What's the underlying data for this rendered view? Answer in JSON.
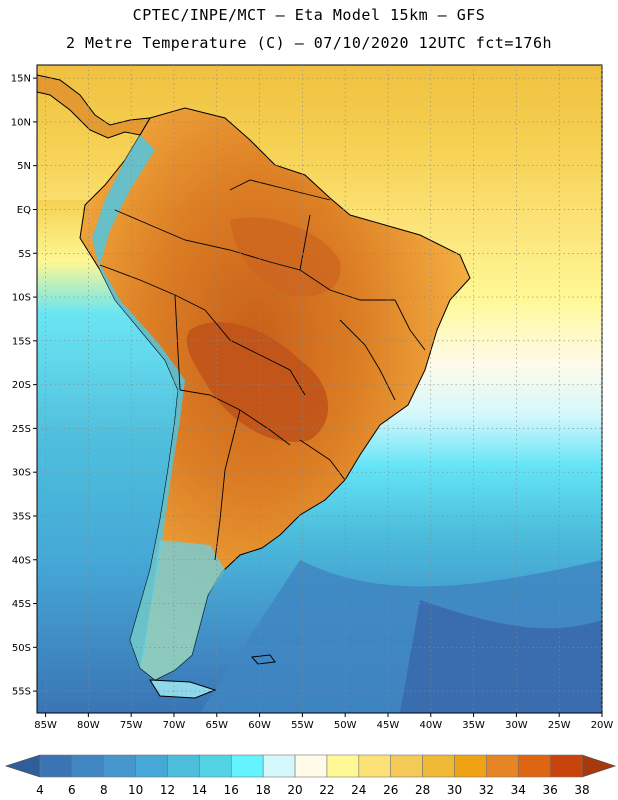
{
  "header": {
    "line1": "CPTEC/INPE/MCT –  Eta Model 15km – GFS",
    "line2": "2 Metre Temperature (C) – 07/10/2020 12UTC fct=176h"
  },
  "map": {
    "region": "South America",
    "lat_labels": [
      "15N",
      "10N",
      "5N",
      "EQ",
      "5S",
      "10S",
      "15S",
      "20S",
      "25S",
      "30S",
      "35S",
      "40S",
      "45S",
      "50S",
      "55S"
    ],
    "lat_values": [
      15,
      10,
      5,
      0,
      -5,
      -10,
      -15,
      -20,
      -25,
      -30,
      -35,
      -40,
      -45,
      -50,
      -55
    ],
    "lon_labels": [
      "85W",
      "80W",
      "75W",
      "70W",
      "65W",
      "60W",
      "55W",
      "50W",
      "45W",
      "40W",
      "35W",
      "30W",
      "25W",
      "20W"
    ],
    "lon_values": [
      -85,
      -80,
      -75,
      -70,
      -65,
      -60,
      -55,
      -50,
      -45,
      -40,
      -35,
      -30,
      -25,
      -20
    ],
    "lon_range": [
      -86,
      -20
    ],
    "lat_range": [
      -57.5,
      16.5
    ]
  },
  "colorbar": {
    "labels": [
      "4",
      "6",
      "8",
      "10",
      "12",
      "14",
      "16",
      "18",
      "20",
      "22",
      "24",
      "26",
      "28",
      "30",
      "32",
      "34",
      "36",
      "38"
    ],
    "colors": [
      "#3a74b4",
      "#3f86c2",
      "#4596cc",
      "#45a8d6",
      "#4cbedc",
      "#52d4e4",
      "#63f4ff",
      "#d4f7fc",
      "#fffbe8",
      "#fef895",
      "#fce276",
      "#f5c956",
      "#f0b935",
      "#f0a215",
      "#e78524",
      "#de6613",
      "#c8440c"
    ],
    "left_arrow_color": "#2f5e9c",
    "right_arrow_color": "#a9380a"
  },
  "colors": {
    "ocean_south": "#3a74b4",
    "ocean_mid": "#4cbedc",
    "ocean_north": "#f0bf3a",
    "land_hot": "#d2721c",
    "land_warm": "#eea23a",
    "andes_cold": "#52c6e0"
  }
}
